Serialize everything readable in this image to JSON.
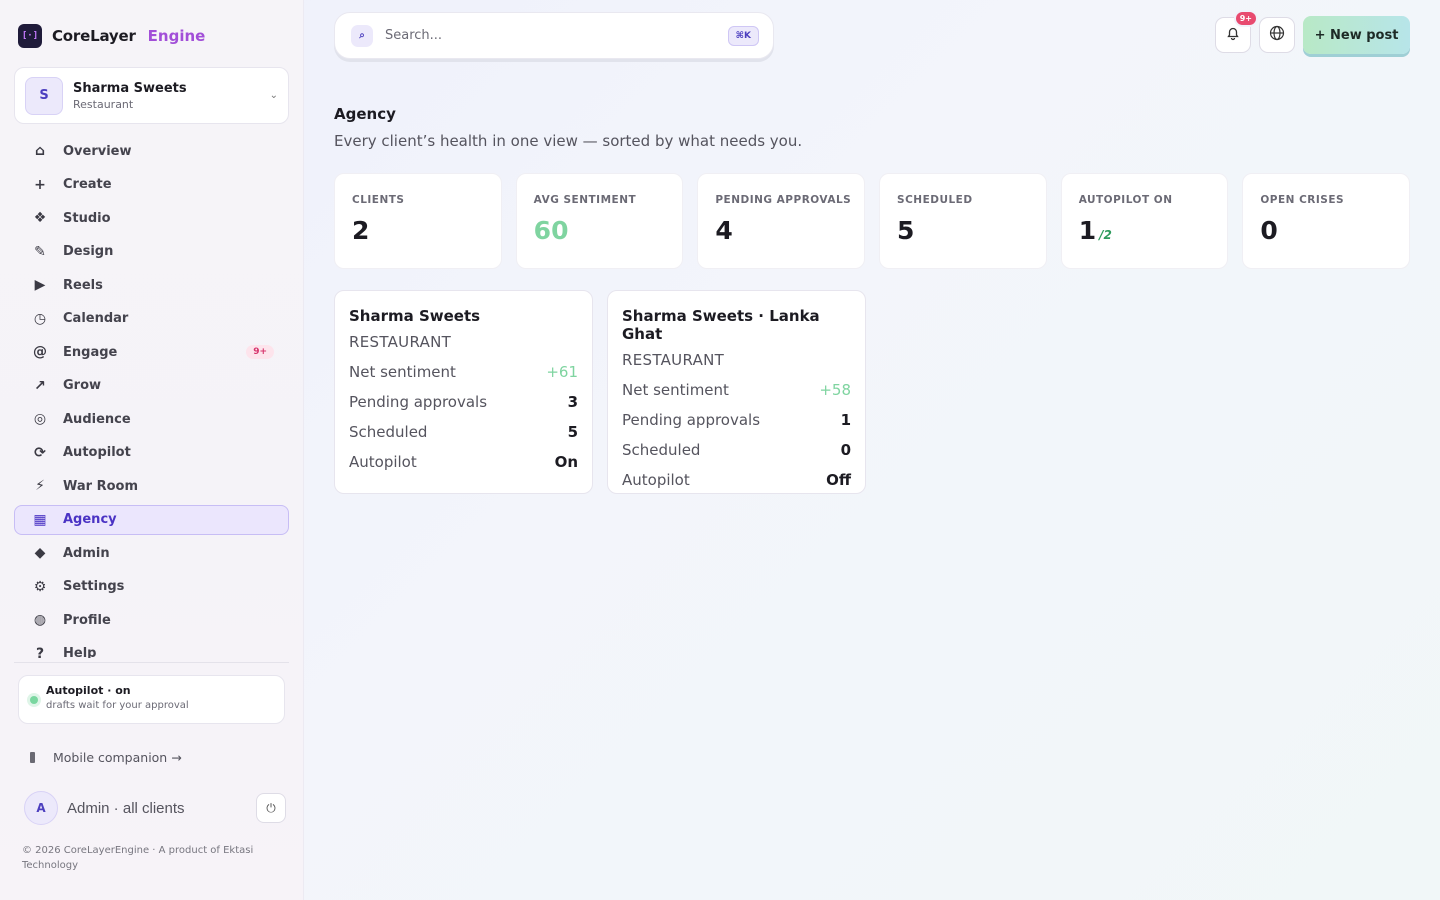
{
  "brand": {
    "name": "CoreLayer",
    "accent": "Engine",
    "logo_glyph": "[·]"
  },
  "client_switcher": {
    "avatar": "S",
    "name": "Sharma Sweets",
    "type": "Restaurant",
    "chevron": "⌄"
  },
  "sidebar": {
    "items": [
      {
        "icon": "⌂",
        "label": "Overview"
      },
      {
        "icon": "+",
        "label": "Create"
      },
      {
        "icon": "❖",
        "label": "Studio"
      },
      {
        "icon": "✎",
        "label": "Design"
      },
      {
        "icon": "▶",
        "label": "Reels"
      },
      {
        "icon": "◷",
        "label": "Calendar"
      },
      {
        "icon": "@",
        "label": "Engage",
        "badge": "9+"
      },
      {
        "icon": "↗",
        "label": "Grow"
      },
      {
        "icon": "◎",
        "label": "Audience"
      },
      {
        "icon": "⟳",
        "label": "Autopilot"
      },
      {
        "icon": "⚡",
        "label": "War Room"
      },
      {
        "icon": "▦",
        "label": "Agency",
        "active": true
      },
      {
        "icon": "◆",
        "label": "Admin"
      },
      {
        "icon": "⚙",
        "label": "Settings"
      },
      {
        "icon": "◍",
        "label": "Profile"
      },
      {
        "icon": "?",
        "label": "Help"
      }
    ]
  },
  "autopilot_status": {
    "title": "Autopilot · on",
    "subtitle": "drafts wait for your approval"
  },
  "mobile_link": "Mobile companion →",
  "user": {
    "avatar": "A",
    "label": "Admin · all clients",
    "power_icon": "⏻"
  },
  "footer": "© 2026 CoreLayerEngine · A product of Ektasi Technology",
  "search": {
    "placeholder": "Search...",
    "shortcut": "⌘K",
    "icon": "⌕"
  },
  "topbar": {
    "notif_badge": "9+",
    "bell_icon": "🔔",
    "globe_icon": "🌐",
    "new_post": "+ New post"
  },
  "page": {
    "title": "Agency",
    "subtitle": "Every client’s health in one view — sorted by what needs you."
  },
  "stats": [
    {
      "label": "CLIENTS",
      "value": "2"
    },
    {
      "label": "AVG SENTIMENT",
      "value": "60",
      "color": "#7fd4a0"
    },
    {
      "label": "PENDING APPROVALS",
      "value": "4"
    },
    {
      "label": "SCHEDULED",
      "value": "5"
    },
    {
      "label": "AUTOPILOT ON",
      "value": "1",
      "sub": "/2"
    },
    {
      "label": "OPEN CRISES",
      "value": "0"
    }
  ],
  "clients": [
    {
      "name": "Sharma Sweets",
      "type": "RESTAURANT",
      "rows": [
        {
          "label": "Net sentiment",
          "value": "+61",
          "positive": true
        },
        {
          "label": "Pending approvals",
          "value": "3"
        },
        {
          "label": "Scheduled",
          "value": "5"
        },
        {
          "label": "Autopilot",
          "value": "On"
        }
      ]
    },
    {
      "name": "Sharma Sweets · Lanka Ghat",
      "type": "RESTAURANT",
      "rows": [
        {
          "label": "Net sentiment",
          "value": "+58",
          "positive": true
        },
        {
          "label": "Pending approvals",
          "value": "1"
        },
        {
          "label": "Scheduled",
          "value": "0"
        },
        {
          "label": "Autopilot",
          "value": "Off"
        }
      ]
    }
  ]
}
